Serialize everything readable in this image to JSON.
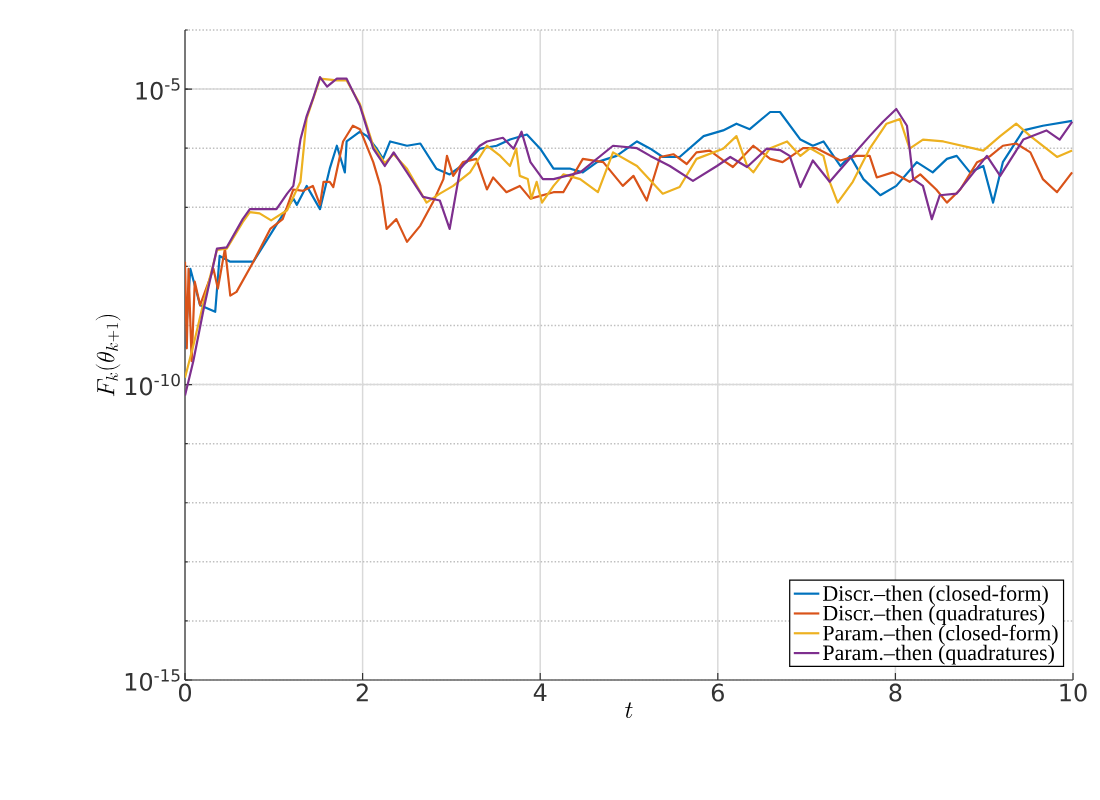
{
  "chart_data": {
    "type": "line",
    "xlabel": "t",
    "ylabel": "F_k(\\theta_{k+1})",
    "log": "y",
    "grid": true,
    "legend": "bottom right",
    "line_style": "solid",
    "marker": "none",
    "xlim": [
      0,
      10
    ],
    "xticks": [
      0,
      2,
      4,
      6,
      8,
      10
    ],
    "ylim": [
      1e-15,
      0.0001
    ],
    "yticks": [
      {
        "value": 1e-15,
        "label": "10$^{-15}$"
      },
      {
        "value": 1e-10,
        "label": "10$^{-10}$"
      },
      {
        "value": 1e-05,
        "label": "10$^{-5}$"
      }
    ],
    "series": [
      {
        "name": "Discr.–then (closed-form)",
        "color": "#0072bd",
        "x": [
          0,
          0.06,
          0.17,
          0.34,
          0.39,
          0.51,
          0.77,
          1.07,
          1.22,
          1.26,
          1.37,
          1.52,
          1.63,
          1.71,
          1.8,
          1.82,
          1.97,
          2.05,
          2.16,
          2.23,
          2.31,
          2.5,
          2.65,
          2.83,
          2.98,
          3.17,
          3.32,
          3.51,
          3.66,
          3.85,
          4.0,
          4.15,
          4.34,
          4.48,
          4.64,
          4.86,
          5.09,
          5.24,
          5.38,
          5.57,
          5.84,
          6.06,
          6.21,
          6.36,
          6.59,
          6.7,
          6.93,
          7.07,
          7.19,
          7.38,
          7.49,
          7.64,
          7.83,
          8.01,
          8.24,
          8.42,
          8.58,
          8.69,
          8.84,
          8.99,
          9.1,
          9.21,
          9.44,
          9.66,
          9.99
        ],
        "values": [
          4.1e-10,
          9.1e-09,
          2.2e-09,
          1.7e-09,
          1.5e-08,
          1.2e-08,
          1.2e-08,
          6.3e-08,
          1.4e-07,
          1.1e-07,
          2.3e-07,
          9.3e-08,
          4.5e-07,
          1.1e-06,
          3.9e-07,
          1.3e-06,
          1.9e-06,
          1.6e-06,
          9.8e-07,
          6.6e-07,
          1.3e-06,
          1.1e-06,
          1.2e-06,
          4.5e-07,
          3.6e-07,
          5.8e-07,
          9.8e-07,
          1.1e-06,
          1.4e-06,
          1.7e-06,
          9.8e-07,
          4.5e-07,
          4.5e-07,
          3.9e-07,
          5.8e-07,
          7.4e-07,
          1.3e-06,
          9.8e-07,
          7.1e-07,
          7.1e-07,
          1.6e-06,
          2e-06,
          2.6e-06,
          2.1e-06,
          4.1e-06,
          4.1e-06,
          1.4e-06,
          1.1e-06,
          1.3e-06,
          5e-07,
          7.4e-07,
          3e-07,
          1.6e-07,
          2.3e-07,
          5.8e-07,
          3.9e-07,
          6.6e-07,
          7.4e-07,
          3.9e-07,
          5e-07,
          1.2e-07,
          5.8e-07,
          2e-06,
          2.4e-06,
          2.9e-06
        ]
      },
      {
        "name": "Discr.–then (quadratures)",
        "color": "#d95319",
        "x": [
          0,
          0.02,
          0.04,
          0.075,
          0.11,
          0.17,
          0.32,
          0.37,
          0.45,
          0.51,
          0.58,
          0.77,
          0.96,
          1.1,
          1.22,
          1.33,
          1.44,
          1.52,
          1.56,
          1.63,
          1.67,
          1.78,
          1.89,
          1.97,
          2.12,
          2.2,
          2.27,
          2.38,
          2.5,
          2.65,
          2.79,
          2.91,
          2.95,
          3.02,
          3.13,
          3.28,
          3.4,
          3.47,
          3.62,
          3.77,
          3.89,
          4.15,
          4.26,
          4.48,
          4.71,
          4.93,
          5.05,
          5.2,
          5.35,
          5.5,
          5.65,
          5.76,
          5.91,
          6.06,
          6.17,
          6.4,
          6.59,
          6.73,
          6.96,
          7.11,
          7.38,
          7.56,
          7.71,
          7.79,
          7.97,
          8.16,
          8.28,
          8.46,
          8.58,
          8.73,
          8.92,
          9.07,
          9.21,
          9.36,
          9.52,
          9.66,
          9.82,
          9.99
        ],
        "values": [
          1.2e-08,
          4.1e-10,
          9.1e-09,
          2.5e-10,
          5.5e-09,
          2.2e-09,
          9.1e-09,
          4.2e-09,
          2e-08,
          3.2e-09,
          3.7e-09,
          1.2e-08,
          4.3e-08,
          6.3e-08,
          2e-07,
          1.9e-07,
          2.3e-07,
          1.1e-07,
          2.7e-07,
          2.7e-07,
          2.2e-07,
          1.3e-06,
          2.4e-06,
          2.1e-06,
          5.8e-07,
          2.3e-07,
          4.3e-08,
          6.3e-08,
          2.6e-08,
          4.9e-08,
          1.2e-07,
          3e-07,
          7.4e-07,
          3.4e-07,
          5.8e-07,
          6.6e-07,
          2e-07,
          3.2e-07,
          1.8e-07,
          2.3e-07,
          1.4e-07,
          1.8e-07,
          1.8e-07,
          6.6e-07,
          5.8e-07,
          2.3e-07,
          3.4e-07,
          1.3e-07,
          7.1e-07,
          7.9e-07,
          5.4e-07,
          8.5e-07,
          9.1e-07,
          6.2e-07,
          4.8e-07,
          1.1e-06,
          6.6e-07,
          5.8e-07,
          1e-06,
          1e-06,
          6.2e-07,
          7.4e-07,
          7.4e-07,
          3.2e-07,
          3.9e-07,
          2.7e-07,
          3.6e-07,
          2e-07,
          1.2e-07,
          2e-07,
          5.8e-07,
          7.4e-07,
          1.1e-06,
          1.2e-06,
          8.5e-07,
          3e-07,
          1.8e-07,
          3.9e-07
        ]
      },
      {
        "name": "Param.–then (closed-form)",
        "color": "#edb120",
        "x": [
          0,
          0.1,
          0.21,
          0.36,
          0.47,
          0.65,
          0.73,
          0.84,
          0.97,
          1.15,
          1.3,
          1.37,
          1.52,
          1.71,
          1.82,
          1.97,
          2.12,
          2.25,
          2.35,
          2.5,
          2.72,
          2.87,
          3.02,
          3.21,
          3.4,
          3.55,
          3.66,
          3.73,
          3.77,
          3.86,
          3.9,
          3.96,
          4.02,
          4.15,
          4.26,
          4.45,
          4.65,
          4.82,
          5.09,
          5.38,
          5.57,
          5.76,
          6.06,
          6.21,
          6.33,
          6.4,
          6.59,
          6.78,
          6.93,
          7.04,
          7.19,
          7.26,
          7.35,
          7.52,
          7.71,
          7.9,
          8.05,
          8.16,
          8.31,
          8.54,
          8.99,
          9.18,
          9.36,
          9.52,
          9.82,
          9.99
        ],
        "values": [
          1.3e-10,
          5e-10,
          2.5e-09,
          1.9e-08,
          2e-08,
          5.6e-08,
          8.3e-08,
          7.9e-08,
          6e-08,
          8.9e-08,
          2.7e-07,
          3.2e-06,
          1.5e-05,
          1.4e-05,
          1.4e-05,
          5.6e-06,
          1.1e-06,
          5.6e-07,
          7.9e-07,
          4.5e-07,
          1.2e-07,
          1.7e-07,
          2.3e-07,
          3.9e-07,
          1.1e-06,
          7.4e-07,
          5e-07,
          9.8e-07,
          3.4e-07,
          3e-07,
          1.4e-07,
          2.7e-07,
          1.2e-07,
          2.3e-07,
          3.6e-07,
          3e-07,
          1.8e-07,
          8.5e-07,
          5e-07,
          1.7e-07,
          2.2e-07,
          6.6e-07,
          9.8e-07,
          1.6e-06,
          5e-07,
          3.9e-07,
          1e-06,
          1.3e-06,
          7.4e-07,
          1e-06,
          7.4e-07,
          2.7e-07,
          1.2e-07,
          2.7e-07,
          9.8e-07,
          2.6e-06,
          3.1e-06,
          9.8e-07,
          1.4e-06,
          1.3e-06,
          9.1e-07,
          1.6e-06,
          2.6e-06,
          1.6e-06,
          7.1e-07,
          9.1e-07
        ]
      },
      {
        "name": "Param.–then (quadratures)",
        "color": "#7e2f8e",
        "x": [
          0,
          0.094,
          0.21,
          0.36,
          0.47,
          0.65,
          0.73,
          0.84,
          1.03,
          1.15,
          1.22,
          1.3,
          1.37,
          1.44,
          1.52,
          1.6,
          1.71,
          1.82,
          1.97,
          2.12,
          2.25,
          2.35,
          2.5,
          2.68,
          2.87,
          2.98,
          3.1,
          3.32,
          3.4,
          3.58,
          3.7,
          3.79,
          3.89,
          4.03,
          4.15,
          4.45,
          4.82,
          5.09,
          5.24,
          5.46,
          5.72,
          5.99,
          6.14,
          6.33,
          6.55,
          6.7,
          6.81,
          6.93,
          7.07,
          7.26,
          7.45,
          7.71,
          7.86,
          8.01,
          8.13,
          8.2,
          8.31,
          8.41,
          8.5,
          8.69,
          9.03,
          9.18,
          9.44,
          9.7,
          9.85,
          9.99
        ],
        "values": [
          6.5e-11,
          2.5e-10,
          1.9e-09,
          2e-08,
          2.1e-08,
          6.3e-08,
          9.3e-08,
          9.3e-08,
          9.3e-08,
          1.7e-07,
          2.3e-07,
          1.4e-06,
          3.5e-06,
          6.8e-06,
          1.6e-05,
          1.1e-05,
          1.5e-05,
          1.5e-05,
          5.2e-06,
          9.8e-07,
          5e-07,
          8.5e-07,
          3.9e-07,
          1.5e-07,
          1.3e-07,
          4.3e-08,
          4.5e-07,
          1.1e-06,
          1.3e-06,
          1.5e-06,
          9.8e-07,
          1.9e-06,
          5.8e-07,
          3e-07,
          3e-07,
          3.9e-07,
          1.1e-06,
          1e-06,
          7.4e-07,
          5e-07,
          2.8e-07,
          5e-07,
          7.1e-07,
          4.8e-07,
          9.8e-07,
          9.3e-07,
          7.4e-07,
          2.2e-07,
          6.2e-07,
          2.7e-07,
          5.8e-07,
          1.6e-06,
          2.8e-06,
          4.6e-06,
          2.4e-06,
          3e-07,
          2.3e-07,
          6.3e-08,
          1.6e-07,
          1.7e-07,
          7.4e-07,
          3.4e-07,
          1.4e-06,
          2e-06,
          1.4e-06,
          2.8e-06
        ]
      }
    ]
  }
}
